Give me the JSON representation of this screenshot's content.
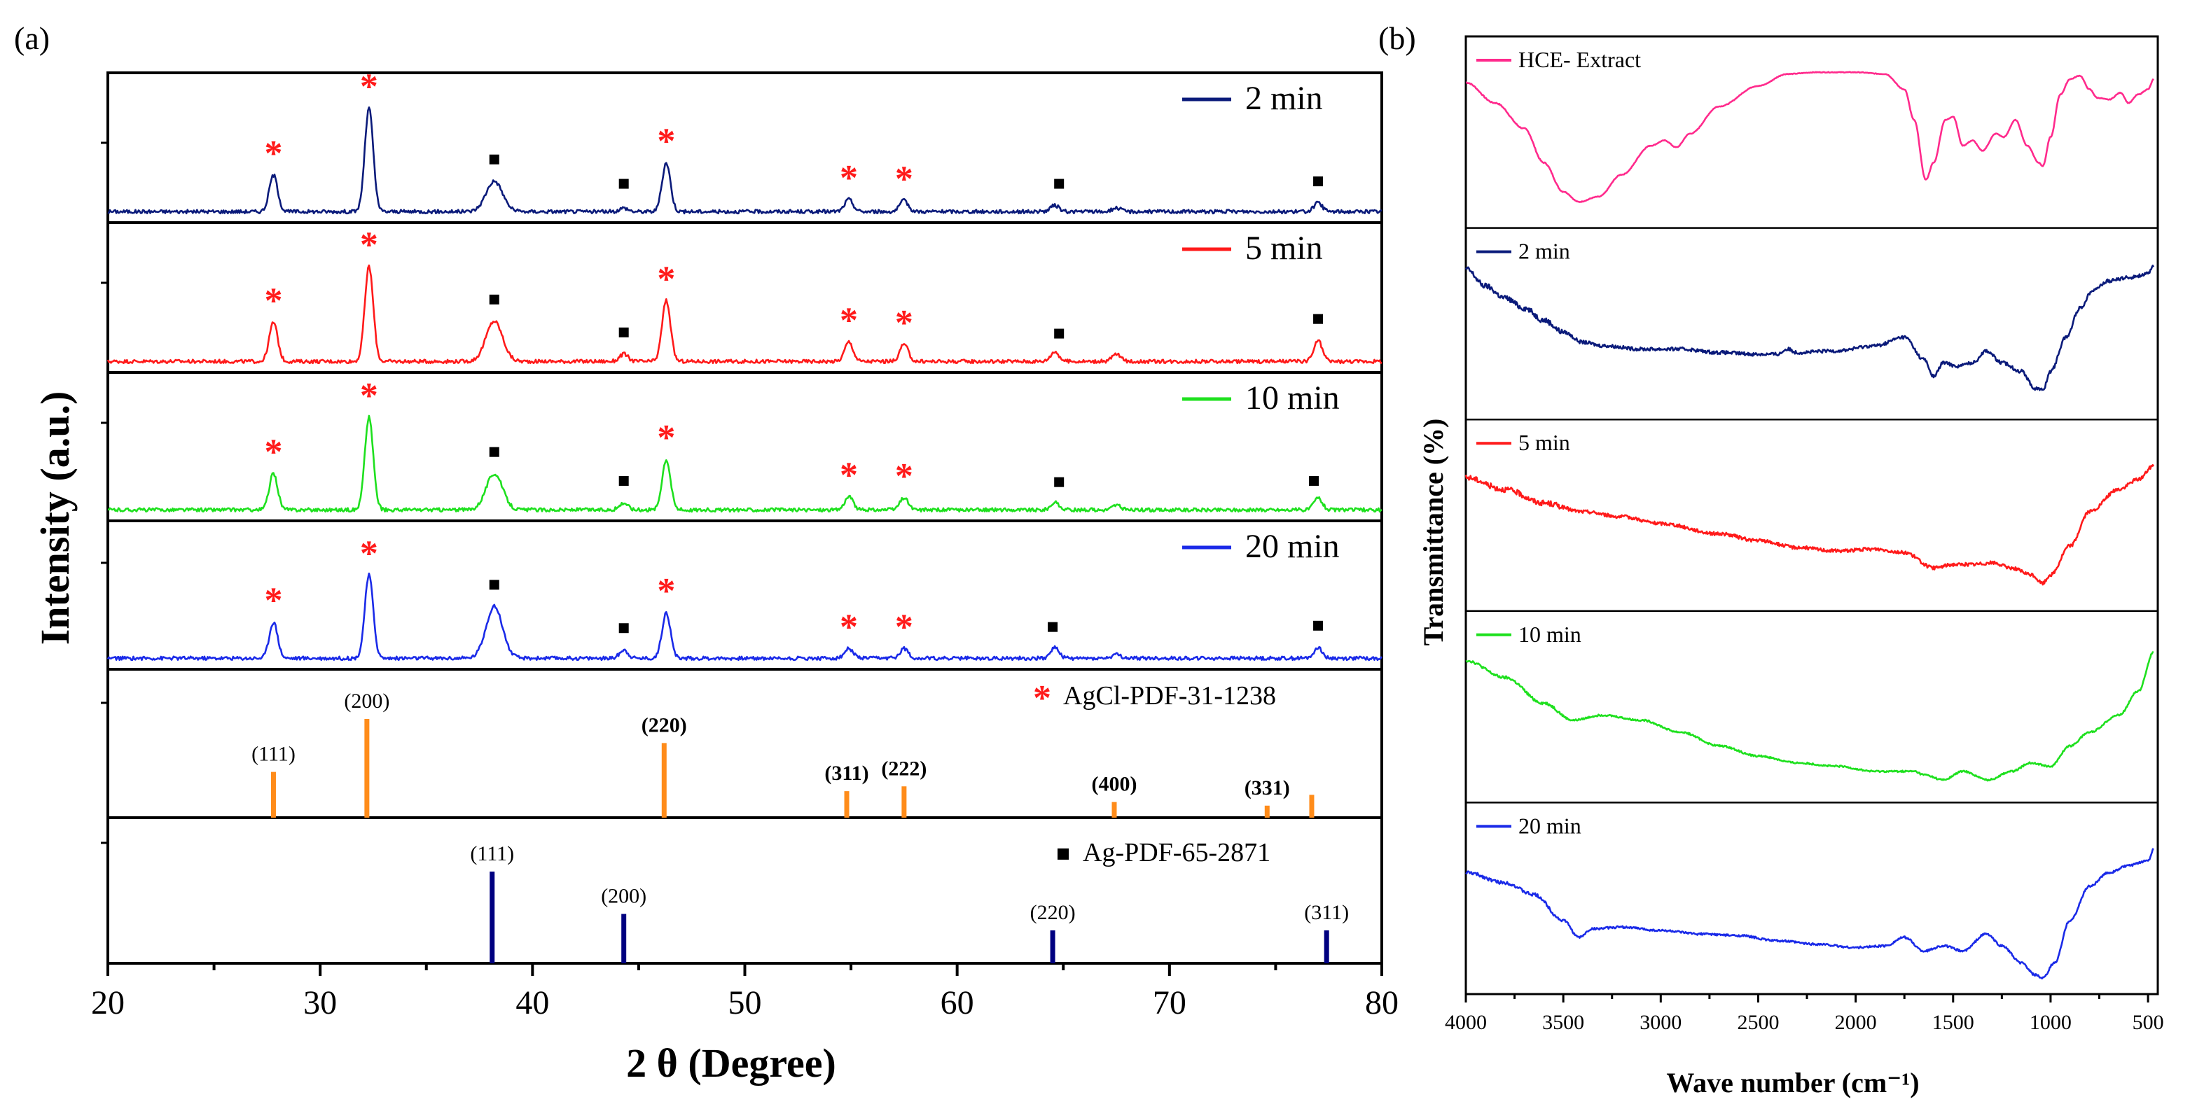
{
  "panels": {
    "a": {
      "label": "(a)"
    },
    "b": {
      "label": "(b)"
    }
  },
  "colors": {
    "axis": "#000000",
    "marker_star": "#ff1a1a",
    "marker_square": "#000000",
    "agcl_ref": "#ff8c1a",
    "ag_ref": "#000080"
  },
  "chart_data": [
    {
      "id": "xrd",
      "type": "line",
      "title": "",
      "xlabel": "2 θ (Degree)",
      "ylabel": "Intensity (a.u.)",
      "xlim": [
        20,
        80
      ],
      "x_ticks": [
        "20",
        "30",
        "40",
        "50",
        "60",
        "70",
        "80"
      ],
      "x_tick_values": [
        20,
        30,
        40,
        50,
        60,
        70,
        80
      ],
      "grid": false,
      "agcl_peaks": [
        27.8,
        32.2,
        46.2,
        54.8,
        57.5
      ],
      "ag_peaks": [
        38.1,
        44.3,
        64.5,
        77.4
      ],
      "peak_width": 0.28,
      "series": [
        {
          "name": "2 min",
          "color": "#0a1a7a",
          "peaks": [
            [
              27.8,
              0.3
            ],
            [
              32.3,
              0.85
            ],
            [
              38.2,
              0.25
            ],
            [
              44.3,
              0.03
            ],
            [
              46.3,
              0.4
            ],
            [
              54.9,
              0.1
            ],
            [
              57.5,
              0.09
            ],
            [
              64.6,
              0.05
            ],
            [
              67.5,
              0.03
            ],
            [
              77.0,
              0.07
            ]
          ],
          "star_labels": [
            27.8,
            32.3,
            46.3,
            54.9,
            57.5
          ],
          "square_labels": [
            38.2,
            44.3,
            64.8,
            77.0
          ]
        },
        {
          "name": "5 min",
          "color": "#ff1a1a",
          "peaks": [
            [
              27.8,
              0.32
            ],
            [
              32.3,
              0.78
            ],
            [
              38.2,
              0.33
            ],
            [
              44.3,
              0.06
            ],
            [
              46.3,
              0.5
            ],
            [
              54.9,
              0.16
            ],
            [
              57.5,
              0.14
            ],
            [
              64.6,
              0.08
            ],
            [
              67.5,
              0.06
            ],
            [
              77.0,
              0.17
            ]
          ],
          "star_labels": [
            27.8,
            32.3,
            46.3,
            54.9,
            57.5
          ],
          "square_labels": [
            38.2,
            44.3,
            64.8,
            77.0
          ]
        },
        {
          "name": "10 min",
          "color": "#1ee01e",
          "peaks": [
            [
              27.8,
              0.3
            ],
            [
              32.3,
              0.77
            ],
            [
              38.2,
              0.3
            ],
            [
              44.3,
              0.06
            ],
            [
              46.3,
              0.42
            ],
            [
              54.9,
              0.11
            ],
            [
              57.5,
              0.1
            ],
            [
              64.6,
              0.06
            ],
            [
              67.5,
              0.04
            ],
            [
              77.0,
              0.1
            ]
          ],
          "star_labels": [
            27.8,
            32.3,
            46.3,
            54.9,
            57.5
          ],
          "square_labels": [
            38.2,
            44.3,
            64.8,
            76.8
          ]
        },
        {
          "name": "20 min",
          "color": "#1a2ae8",
          "peaks": [
            [
              27.8,
              0.3
            ],
            [
              32.3,
              0.69
            ],
            [
              38.2,
              0.43
            ],
            [
              44.3,
              0.07
            ],
            [
              46.3,
              0.38
            ],
            [
              54.9,
              0.08
            ],
            [
              57.5,
              0.08
            ],
            [
              64.6,
              0.09
            ],
            [
              67.5,
              0.03
            ],
            [
              77.0,
              0.09
            ]
          ],
          "star_labels": [
            27.8,
            32.3,
            46.3,
            54.9,
            57.5
          ],
          "square_labels": [
            38.2,
            44.3,
            64.5,
            77.0
          ]
        }
      ],
      "references": [
        {
          "name": "AgCl-PDF-31-1238",
          "symbol": "*",
          "color": "#ff8c1a",
          "lines": [
            {
              "x": 27.8,
              "h": 0.38,
              "label": "(111)",
              "bold": false
            },
            {
              "x": 32.2,
              "h": 0.82,
              "label": "(200)",
              "bold": false
            },
            {
              "x": 46.2,
              "h": 0.62,
              "label": "(220)",
              "bold": true
            },
            {
              "x": 54.8,
              "h": 0.22,
              "label": "(311)",
              "bold": true
            },
            {
              "x": 57.5,
              "h": 0.26,
              "label": "(222)",
              "bold": true
            },
            {
              "x": 67.4,
              "h": 0.13,
              "label": "(400)",
              "bold": true
            },
            {
              "x": 74.6,
              "h": 0.1,
              "label": "(331)",
              "bold": true
            },
            {
              "x": 76.7,
              "h": 0.19,
              "label": "",
              "bold": false
            }
          ]
        },
        {
          "name": "Ag-PDF-65-2871",
          "symbol": "■",
          "color": "#000080",
          "lines": [
            {
              "x": 38.1,
              "h": 0.78,
              "label": "(111)",
              "bold": false
            },
            {
              "x": 44.3,
              "h": 0.42,
              "label": "(200)",
              "bold": false
            },
            {
              "x": 64.5,
              "h": 0.28,
              "label": "(220)",
              "bold": false
            },
            {
              "x": 77.4,
              "h": 0.28,
              "label": "(311)",
              "bold": false
            }
          ]
        }
      ]
    },
    {
      "id": "ftir",
      "type": "line",
      "title": "",
      "xlabel": "Wave number (cm⁻¹)",
      "ylabel": "Transmittance (%)",
      "xlim": [
        4000,
        450
      ],
      "x_ticks": [
        "4000",
        "3500",
        "3000",
        "2500",
        "2000",
        "1500",
        "1000",
        "500"
      ],
      "x_tick_values": [
        4000,
        3500,
        3000,
        2500,
        2000,
        1500,
        1000,
        500
      ],
      "grid": false,
      "series": [
        {
          "name": "HCE- Extract",
          "color": "#ff2a8c",
          "noise": 0.004,
          "points": [
            [
              4000,
              0.82
            ],
            [
              3850,
              0.7
            ],
            [
              3700,
              0.55
            ],
            [
              3600,
              0.35
            ],
            [
              3500,
              0.18
            ],
            [
              3420,
              0.12
            ],
            [
              3320,
              0.15
            ],
            [
              3200,
              0.28
            ],
            [
              3050,
              0.45
            ],
            [
              2980,
              0.48
            ],
            [
              2920,
              0.44
            ],
            [
              2850,
              0.52
            ],
            [
              2700,
              0.68
            ],
            [
              2500,
              0.8
            ],
            [
              2350,
              0.87
            ],
            [
              2200,
              0.88
            ],
            [
              2000,
              0.88
            ],
            [
              1850,
              0.87
            ],
            [
              1750,
              0.78
            ],
            [
              1700,
              0.6
            ],
            [
              1640,
              0.25
            ],
            [
              1600,
              0.35
            ],
            [
              1540,
              0.6
            ],
            [
              1500,
              0.62
            ],
            [
              1450,
              0.45
            ],
            [
              1400,
              0.48
            ],
            [
              1350,
              0.42
            ],
            [
              1280,
              0.52
            ],
            [
              1240,
              0.5
            ],
            [
              1180,
              0.6
            ],
            [
              1120,
              0.45
            ],
            [
              1060,
              0.35
            ],
            [
              1040,
              0.33
            ],
            [
              1000,
              0.5
            ],
            [
              950,
              0.75
            ],
            [
              900,
              0.84
            ],
            [
              850,
              0.86
            ],
            [
              800,
              0.78
            ],
            [
              760,
              0.73
            ],
            [
              700,
              0.72
            ],
            [
              640,
              0.76
            ],
            [
              600,
              0.7
            ],
            [
              550,
              0.75
            ],
            [
              500,
              0.78
            ],
            [
              470,
              0.84
            ]
          ]
        },
        {
          "name": "2 min",
          "color": "#0a1a7a",
          "noise": 0.02,
          "points": [
            [
              4000,
              0.85
            ],
            [
              3900,
              0.75
            ],
            [
              3800,
              0.68
            ],
            [
              3700,
              0.62
            ],
            [
              3600,
              0.55
            ],
            [
              3500,
              0.48
            ],
            [
              3400,
              0.42
            ],
            [
              3300,
              0.4
            ],
            [
              3100,
              0.38
            ],
            [
              2900,
              0.38
            ],
            [
              2700,
              0.36
            ],
            [
              2500,
              0.35
            ],
            [
              2400,
              0.35
            ],
            [
              2350,
              0.38
            ],
            [
              2300,
              0.36
            ],
            [
              2100,
              0.37
            ],
            [
              1900,
              0.4
            ],
            [
              1750,
              0.45
            ],
            [
              1650,
              0.32
            ],
            [
              1600,
              0.22
            ],
            [
              1550,
              0.3
            ],
            [
              1480,
              0.28
            ],
            [
              1400,
              0.3
            ],
            [
              1330,
              0.37
            ],
            [
              1250,
              0.3
            ],
            [
              1150,
              0.25
            ],
            [
              1080,
              0.15
            ],
            [
              1040,
              0.14
            ],
            [
              1000,
              0.25
            ],
            [
              920,
              0.45
            ],
            [
              850,
              0.62
            ],
            [
              780,
              0.73
            ],
            [
              700,
              0.78
            ],
            [
              600,
              0.8
            ],
            [
              500,
              0.82
            ],
            [
              470,
              0.87
            ]
          ]
        },
        {
          "name": "5 min",
          "color": "#ff1a1a",
          "noise": 0.02,
          "points": [
            [
              4000,
              0.75
            ],
            [
              3800,
              0.68
            ],
            [
              3600,
              0.6
            ],
            [
              3400,
              0.55
            ],
            [
              3200,
              0.52
            ],
            [
              3000,
              0.48
            ],
            [
              2700,
              0.42
            ],
            [
              2500,
              0.38
            ],
            [
              2300,
              0.34
            ],
            [
              2100,
              0.32
            ],
            [
              1900,
              0.33
            ],
            [
              1750,
              0.31
            ],
            [
              1600,
              0.22
            ],
            [
              1500,
              0.24
            ],
            [
              1400,
              0.24
            ],
            [
              1300,
              0.25
            ],
            [
              1200,
              0.22
            ],
            [
              1100,
              0.18
            ],
            [
              1040,
              0.13
            ],
            [
              1000,
              0.18
            ],
            [
              900,
              0.35
            ],
            [
              800,
              0.55
            ],
            [
              650,
              0.68
            ],
            [
              550,
              0.74
            ],
            [
              470,
              0.82
            ]
          ]
        },
        {
          "name": "10 min",
          "color": "#1ee01e",
          "noise": 0.01,
          "points": [
            [
              4000,
              0.8
            ],
            [
              3800,
              0.7
            ],
            [
              3600,
              0.55
            ],
            [
              3450,
              0.45
            ],
            [
              3300,
              0.48
            ],
            [
              3100,
              0.45
            ],
            [
              2900,
              0.38
            ],
            [
              2700,
              0.3
            ],
            [
              2500,
              0.24
            ],
            [
              2300,
              0.2
            ],
            [
              2100,
              0.18
            ],
            [
              1900,
              0.15
            ],
            [
              1700,
              0.15
            ],
            [
              1650,
              0.13
            ],
            [
              1550,
              0.1
            ],
            [
              1450,
              0.15
            ],
            [
              1320,
              0.1
            ],
            [
              1200,
              0.15
            ],
            [
              1100,
              0.2
            ],
            [
              1000,
              0.18
            ],
            [
              900,
              0.3
            ],
            [
              800,
              0.38
            ],
            [
              650,
              0.48
            ],
            [
              550,
              0.62
            ],
            [
              470,
              0.85
            ]
          ]
        },
        {
          "name": "20 min",
          "color": "#1a2ae8",
          "noise": 0.012,
          "points": [
            [
              4000,
              0.68
            ],
            [
              3800,
              0.62
            ],
            [
              3650,
              0.55
            ],
            [
              3500,
              0.4
            ],
            [
              3420,
              0.3
            ],
            [
              3350,
              0.35
            ],
            [
              3200,
              0.36
            ],
            [
              3000,
              0.34
            ],
            [
              2800,
              0.32
            ],
            [
              2600,
              0.31
            ],
            [
              2400,
              0.28
            ],
            [
              2200,
              0.26
            ],
            [
              2000,
              0.24
            ],
            [
              1850,
              0.25
            ],
            [
              1750,
              0.3
            ],
            [
              1650,
              0.22
            ],
            [
              1550,
              0.25
            ],
            [
              1450,
              0.22
            ],
            [
              1330,
              0.32
            ],
            [
              1250,
              0.25
            ],
            [
              1150,
              0.15
            ],
            [
              1080,
              0.08
            ],
            [
              1040,
              0.06
            ],
            [
              980,
              0.15
            ],
            [
              900,
              0.4
            ],
            [
              800,
              0.6
            ],
            [
              700,
              0.68
            ],
            [
              600,
              0.72
            ],
            [
              500,
              0.75
            ],
            [
              470,
              0.82
            ]
          ]
        }
      ]
    }
  ]
}
